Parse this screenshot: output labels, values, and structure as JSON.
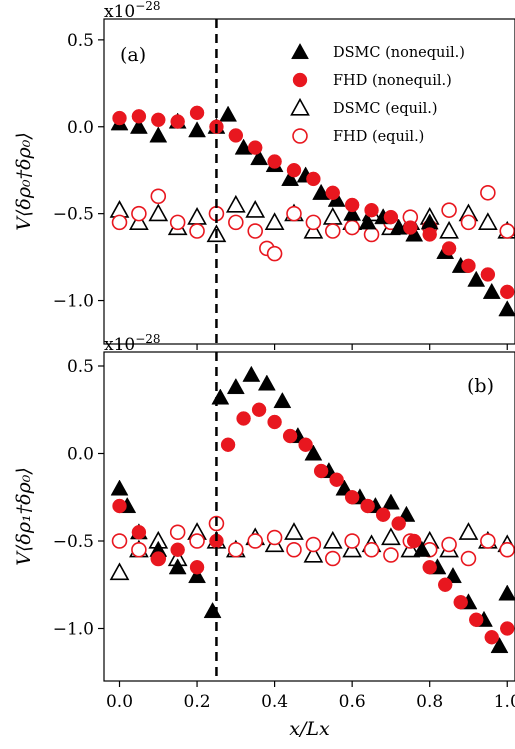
{
  "chart_data": [
    {
      "type": "scatter",
      "panel_label": "(a)",
      "ylabel": "V⟨δρ₀†δρ₀⟩",
      "y_exponent": {
        "base": "x10",
        "power": "−28"
      },
      "xlim": [
        -0.04,
        1.02
      ],
      "ylim": [
        -1.25,
        0.62
      ],
      "yticks": [
        0.5,
        0.0,
        -0.5,
        -1.0
      ],
      "ytick_labels": [
        "0.5",
        "0.0",
        "−0.5",
        "−1.0"
      ],
      "vline_x": 0.25,
      "legend": {
        "placement": "top-right",
        "entries": [
          "DSMC (nonequil.)",
          "FHD (nonequil.)",
          "DSMC (equil.)",
          "FHD (equil.)"
        ]
      },
      "series": [
        {
          "name": "DSMC (nonequil.)",
          "marker": "triangle-filled",
          "color": "#000000",
          "x": [
            0.0,
            0.05,
            0.1,
            0.15,
            0.2,
            0.25,
            0.28,
            0.32,
            0.36,
            0.4,
            0.44,
            0.48,
            0.52,
            0.56,
            0.6,
            0.64,
            0.68,
            0.72,
            0.76,
            0.8,
            0.84,
            0.88,
            0.92,
            0.96,
            1.0
          ],
          "y": [
            0.02,
            0.0,
            -0.05,
            0.03,
            -0.02,
            0.0,
            0.07,
            -0.12,
            -0.18,
            -0.22,
            -0.3,
            -0.28,
            -0.38,
            -0.42,
            -0.5,
            -0.55,
            -0.52,
            -0.58,
            -0.62,
            -0.55,
            -0.72,
            -0.8,
            -0.88,
            -0.95,
            -1.05
          ]
        },
        {
          "name": "FHD (nonequil.)",
          "marker": "circle-filled",
          "color": "#e8171f",
          "x": [
            0.0,
            0.05,
            0.1,
            0.15,
            0.2,
            0.25,
            0.3,
            0.35,
            0.4,
            0.45,
            0.5,
            0.55,
            0.6,
            0.65,
            0.7,
            0.75,
            0.8,
            0.85,
            0.9,
            0.95,
            1.0
          ],
          "y": [
            0.05,
            0.06,
            0.04,
            0.03,
            0.08,
            0.0,
            -0.05,
            -0.12,
            -0.2,
            -0.25,
            -0.3,
            -0.38,
            -0.45,
            -0.48,
            -0.52,
            -0.58,
            -0.62,
            -0.7,
            -0.8,
            -0.85,
            -0.95
          ]
        },
        {
          "name": "DSMC (equil.)",
          "marker": "triangle-open",
          "color": "#000000",
          "x": [
            0.0,
            0.05,
            0.1,
            0.15,
            0.2,
            0.25,
            0.3,
            0.35,
            0.4,
            0.45,
            0.5,
            0.55,
            0.6,
            0.65,
            0.7,
            0.75,
            0.8,
            0.85,
            0.9,
            0.95,
            1.0
          ],
          "y": [
            -0.48,
            -0.55,
            -0.5,
            -0.58,
            -0.52,
            -0.62,
            -0.45,
            -0.48,
            -0.55,
            -0.5,
            -0.6,
            -0.52,
            -0.55,
            -0.5,
            -0.58,
            -0.55,
            -0.52,
            -0.6,
            -0.5,
            -0.55,
            -0.6
          ]
        },
        {
          "name": "FHD (equil.)",
          "marker": "circle-open",
          "color": "#e8171f",
          "x": [
            0.0,
            0.05,
            0.1,
            0.15,
            0.2,
            0.25,
            0.3,
            0.35,
            0.38,
            0.4,
            0.45,
            0.5,
            0.55,
            0.6,
            0.65,
            0.7,
            0.75,
            0.8,
            0.85,
            0.9,
            0.95,
            1.0
          ],
          "y": [
            -0.55,
            -0.5,
            -0.4,
            -0.55,
            -0.6,
            -0.5,
            -0.55,
            -0.6,
            -0.7,
            -0.73,
            -0.5,
            -0.55,
            -0.6,
            -0.58,
            -0.62,
            -0.55,
            -0.52,
            -0.58,
            -0.48,
            -0.55,
            -0.38,
            -0.6
          ]
        }
      ]
    },
    {
      "type": "scatter",
      "panel_label": "(b)",
      "ylabel": "V⟨δρ₁†δρ₀⟩",
      "y_exponent": {
        "base": "x10",
        "power": "−28"
      },
      "xlim": [
        -0.04,
        1.02
      ],
      "ylim": [
        -1.3,
        0.58
      ],
      "yticks": [
        0.5,
        0.0,
        -0.5,
        -1.0
      ],
      "ytick_labels": [
        "0.5",
        "0.0",
        "−0.5",
        "−1.0"
      ],
      "xticks": [
        0.0,
        0.2,
        0.4,
        0.6,
        0.8,
        1.0
      ],
      "xtick_labels": [
        "0.0",
        "0.2",
        "0.4",
        "0.6",
        "0.8",
        "1.0"
      ],
      "xlabel": "x/Lx",
      "vline_x": 0.25,
      "series": [
        {
          "name": "DSMC (nonequil.)",
          "marker": "triangle-filled",
          "color": "#000000",
          "x": [
            0.0,
            0.02,
            0.05,
            0.1,
            0.15,
            0.2,
            0.24,
            0.26,
            0.3,
            0.34,
            0.38,
            0.42,
            0.46,
            0.5,
            0.54,
            0.58,
            0.62,
            0.66,
            0.7,
            0.74,
            0.78,
            0.82,
            0.86,
            0.9,
            0.94,
            0.98,
            1.0
          ],
          "y": [
            -0.2,
            -0.3,
            -0.45,
            -0.55,
            -0.65,
            -0.7,
            -0.9,
            0.32,
            0.38,
            0.45,
            0.4,
            0.3,
            0.1,
            0.0,
            -0.1,
            -0.2,
            -0.25,
            -0.3,
            -0.28,
            -0.35,
            -0.55,
            -0.65,
            -0.7,
            -0.85,
            -0.95,
            -1.1,
            -0.8
          ]
        },
        {
          "name": "FHD (nonequil.)",
          "marker": "circle-filled",
          "color": "#e8171f",
          "x": [
            0.0,
            0.05,
            0.1,
            0.15,
            0.2,
            0.25,
            0.28,
            0.32,
            0.36,
            0.4,
            0.44,
            0.48,
            0.52,
            0.56,
            0.6,
            0.64,
            0.68,
            0.72,
            0.76,
            0.8,
            0.84,
            0.88,
            0.92,
            0.96,
            1.0
          ],
          "y": [
            -0.3,
            -0.45,
            -0.6,
            -0.55,
            -0.65,
            -0.5,
            0.05,
            0.2,
            0.25,
            0.18,
            0.1,
            0.05,
            -0.1,
            -0.15,
            -0.25,
            -0.3,
            -0.35,
            -0.4,
            -0.5,
            -0.65,
            -0.75,
            -0.85,
            -0.95,
            -1.05,
            -1.0
          ]
        },
        {
          "name": "DSMC (equil.)",
          "marker": "triangle-open",
          "color": "#000000",
          "x": [
            0.0,
            0.05,
            0.1,
            0.15,
            0.2,
            0.25,
            0.3,
            0.35,
            0.4,
            0.45,
            0.5,
            0.55,
            0.6,
            0.65,
            0.7,
            0.75,
            0.8,
            0.85,
            0.9,
            0.95,
            1.0
          ],
          "y": [
            -0.68,
            -0.55,
            -0.5,
            -0.6,
            -0.45,
            -0.5,
            -0.55,
            -0.48,
            -0.52,
            -0.45,
            -0.58,
            -0.5,
            -0.55,
            -0.52,
            -0.48,
            -0.55,
            -0.5,
            -0.55,
            -0.45,
            -0.5,
            -0.52
          ]
        },
        {
          "name": "FHD (equil.)",
          "marker": "circle-open",
          "color": "#e8171f",
          "x": [
            0.0,
            0.05,
            0.1,
            0.15,
            0.2,
            0.25,
            0.3,
            0.35,
            0.4,
            0.45,
            0.5,
            0.55,
            0.6,
            0.65,
            0.7,
            0.75,
            0.8,
            0.85,
            0.9,
            0.95,
            1.0
          ],
          "y": [
            -0.5,
            -0.55,
            -0.6,
            -0.45,
            -0.5,
            -0.4,
            -0.55,
            -0.5,
            -0.48,
            -0.55,
            -0.52,
            -0.6,
            -0.5,
            -0.55,
            -0.58,
            -0.5,
            -0.55,
            -0.52,
            -0.6,
            -0.5,
            -0.55
          ]
        }
      ]
    }
  ]
}
